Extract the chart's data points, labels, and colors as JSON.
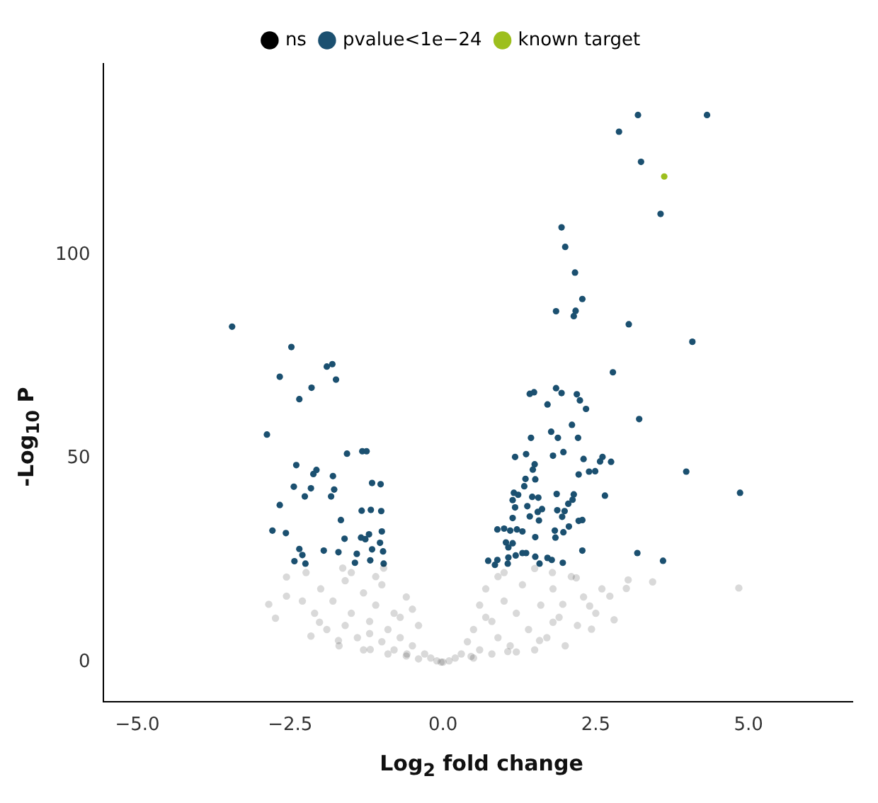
{
  "chart_data": {
    "type": "scatter",
    "xlabel": "Log$_{2}$ fold change",
    "ylabel": "-Log$_{10}$ P",
    "legend": "top",
    "marker": "circle",
    "grid": false,
    "xlim": [
      -5.56,
      6.7
    ],
    "ylim": [
      -9.7,
      147
    ],
    "xticks": [
      {
        "value": -5,
        "label": "−5.0"
      },
      {
        "value": -2.5,
        "label": "−2.5"
      },
      {
        "value": 0,
        "label": "0.0"
      },
      {
        "value": 2.5,
        "label": "2.5"
      },
      {
        "value": 5,
        "label": "5.0"
      }
    ],
    "yticks": [
      0,
      50,
      100
    ],
    "series": [
      {
        "name": "ns",
        "color": "#000000",
        "x": [
          -2.85,
          -2.74,
          -2.56,
          -2.56,
          4.84,
          3.43,
          3.03,
          3.0,
          2.73,
          2.4,
          2.43,
          2.8,
          2.18,
          1.79,
          -2.24,
          -1.64,
          -0.97,
          -2.02,
          -2.16,
          -1.71,
          -1.19,
          -0.59,
          -0.03,
          0.46,
          1.06,
          1.58,
          1.8,
          1.96,
          -2.0,
          -1.8,
          -1.6,
          -1.5,
          -1.3,
          -1.2,
          -1.1,
          -1.0,
          -0.9,
          -0.8,
          -0.7,
          -0.6,
          -0.5,
          -0.4,
          -0.3,
          -0.2,
          -1.9,
          -1.4,
          -1.0,
          -0.8,
          -0.6,
          -0.4,
          -2.1,
          -1.7,
          -1.3,
          -0.9,
          -0.7,
          -1.1,
          -0.5,
          -1.5,
          -2.3,
          -1.6,
          -1.2,
          0.2,
          0.3,
          0.4,
          0.5,
          0.6,
          0.6,
          0.7,
          0.8,
          0.9,
          0.9,
          1.0,
          1.1,
          1.2,
          1.3,
          1.4,
          1.5,
          1.5,
          1.6,
          1.7,
          1.8,
          1.9,
          2.0,
          2.1,
          2.2,
          2.3,
          0.5,
          0.8,
          1.0,
          0.7,
          1.2,
          2.5,
          2.6,
          -0.1,
          0.0,
          0.1
        ],
        "values": [
          14.2,
          10.8,
          20.9,
          16.2,
          18.2,
          19.7,
          20.2,
          18.1,
          16.2,
          13.8,
          8.1,
          10.4,
          20.7,
          22,
          22,
          23.1,
          23.1,
          9.8,
          6.4,
          5.3,
          3.1,
          2,
          0,
          1.4,
          2.6,
          5.3,
          9.8,
          14.2,
          18,
          15,
          20,
          12,
          17,
          10,
          14,
          19,
          8,
          12,
          6,
          16,
          4,
          9,
          2,
          1,
          8,
          6,
          5,
          3,
          1.5,
          0.8,
          12,
          4,
          3,
          2,
          11,
          21,
          13,
          22,
          15,
          9,
          7,
          1,
          2,
          5,
          8,
          3,
          14,
          18,
          10,
          6,
          21,
          15,
          4,
          12,
          19,
          8,
          23,
          3,
          14,
          6,
          18,
          11,
          4,
          21,
          9,
          16,
          1,
          2,
          22,
          11,
          2.5,
          12,
          18,
          0.3,
          0,
          0.3
        ]
      },
      {
        "name": "pvalue<1e−24",
        "color": "#1b5070",
        "x": [
          -3.45,
          -2.48,
          -2.67,
          -1.9,
          -1.81,
          -1.75,
          -2.15,
          -2.35,
          -2.88,
          -1.57,
          -1.32,
          -1.25,
          -2.4,
          -2.07,
          -2.12,
          -1.8,
          -2.44,
          -2.16,
          -1.78,
          -2.26,
          -1.83,
          -1.16,
          -1.02,
          -2.67,
          -1.33,
          -1.18,
          -1.01,
          -1.67,
          -2.79,
          -2.57,
          -1.61,
          -1.34,
          -1.27,
          -1.21,
          -1.0,
          -1.03,
          -2.35,
          -2.3,
          -1.95,
          -1.71,
          -1.41,
          -1.16,
          -0.98,
          -2.43,
          -2.25,
          -1.44,
          -1.19,
          -0.97,
          3.56,
          1.94,
          2.0,
          2.16,
          2.28,
          1.85,
          2.17,
          2.14,
          3.04,
          4.08,
          2.78,
          1.85,
          1.94,
          1.42,
          1.49,
          2.19,
          2.24,
          1.71,
          2.34,
          3.21,
          2.11,
          1.77,
          1.44,
          1.88,
          2.21,
          1.18,
          1.36,
          1.8,
          1.97,
          2.3,
          2.61,
          2.57,
          2.75,
          1.5,
          1.47,
          2.39,
          2.49,
          2.22,
          3.98,
          1.35,
          1.51,
          1.33,
          1.16,
          1.23,
          1.46,
          1.56,
          1.86,
          2.14,
          2.65,
          4.86,
          1.14,
          2.12,
          2.05,
          1.18,
          1.38,
          1.62,
          1.55,
          1.87,
          1.99,
          1.42,
          1.95,
          1.14,
          1.57,
          2.22,
          2.28,
          2.06,
          0.89,
          1.0,
          1.1,
          1.21,
          1.3,
          1.83,
          1.97,
          1.51,
          1.84,
          1.03,
          1.14,
          1.07,
          2.28,
          3.18,
          1.3,
          1.36,
          1.19,
          1.07,
          1.51,
          1.71,
          1.78,
          0.74,
          0.89,
          1.58,
          1.96,
          3.6,
          0.85,
          1.06,
          3.19,
          4.32,
          2.88,
          3.24
        ],
        "values": [
          82.4,
          77.4,
          70.1,
          72.6,
          73.2,
          69.4,
          67.4,
          64.6,
          55.9,
          51.2,
          51.8,
          51.8,
          48.4,
          47.2,
          46.2,
          45.7,
          43.1,
          42.7,
          42.4,
          40.7,
          40.7,
          44,
          43.7,
          38.6,
          37.2,
          37.4,
          37.1,
          34.9,
          32.3,
          31.7,
          30.3,
          30.6,
          30.2,
          31.4,
          32.1,
          29.3,
          27.8,
          26.3,
          27.4,
          27,
          26.6,
          27.7,
          27.2,
          24.8,
          24.2,
          24.4,
          25,
          24.2,
          110.1,
          106.8,
          102,
          95.7,
          89.2,
          86.2,
          86.3,
          85,
          83,
          78.7,
          71.2,
          67.3,
          66.1,
          65.9,
          66.3,
          65.8,
          64.3,
          63.3,
          62.2,
          59.7,
          58.3,
          56.6,
          55.1,
          55.1,
          55.1,
          50.4,
          51.1,
          50.7,
          51.6,
          49.9,
          50.4,
          49.3,
          49.2,
          48.6,
          47.3,
          46.8,
          46.9,
          46.1,
          46.8,
          45,
          44.9,
          43.2,
          41.6,
          41.1,
          40.6,
          40.4,
          41.3,
          41.2,
          40.9,
          41.6,
          39.8,
          39.9,
          38.9,
          38,
          38.3,
          37.6,
          36.9,
          37.3,
          37.1,
          35.8,
          35.7,
          35.4,
          34.8,
          34.7,
          34.9,
          33.3,
          32.6,
          32.8,
          32.3,
          32.6,
          32.1,
          32.3,
          31.9,
          30.7,
          30.6,
          29.4,
          29.2,
          28.2,
          27.4,
          26.8,
          26.8,
          26.8,
          26.2,
          25.7,
          25.9,
          25.6,
          25.1,
          24.9,
          25.1,
          24.2,
          24.4,
          24.9,
          23.9,
          24.2,
          134.4,
          134.4,
          130.3,
          122.9
        ]
      },
      {
        "name": "known target",
        "color": "#9dbf1e",
        "x": [
          3.62
        ],
        "values": [
          119.3
        ]
      }
    ]
  }
}
